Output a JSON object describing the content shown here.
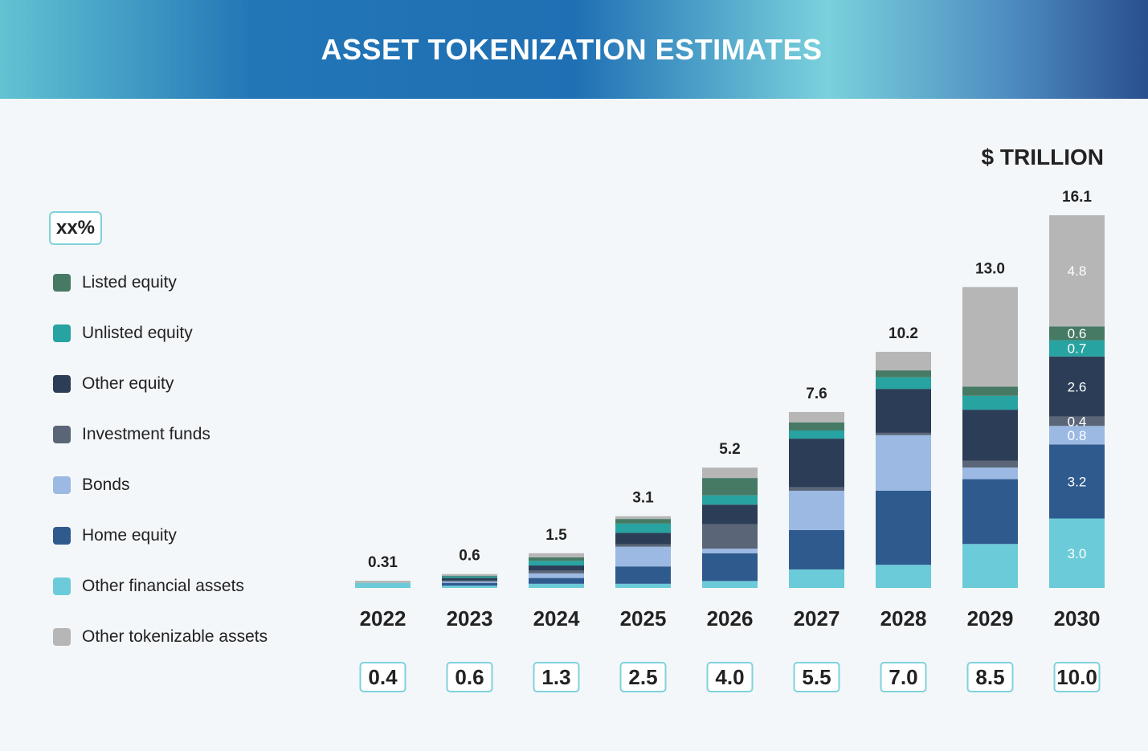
{
  "header": {
    "title": "ASSET TOKENIZATION ESTIMATES"
  },
  "unit_label": "$ TRILLION",
  "percent_box_label": "xx%",
  "colors": {
    "listed_equity": "#467a65",
    "unlisted_equity": "#27a3a1",
    "other_equity": "#2c3e57",
    "investment_funds": "#5a6678",
    "bonds": "#9bb9e2",
    "home_equity": "#2f5a8e",
    "other_financial_assets": "#6ccbd8",
    "other_tokenizable_assets": "#b6b6b6"
  },
  "legend": [
    {
      "key": "listed_equity",
      "label": "Listed equity",
      "color": "#467a65"
    },
    {
      "key": "unlisted_equity",
      "label": "Unlisted equity",
      "color": "#27a3a1"
    },
    {
      "key": "other_equity",
      "label": "Other equity",
      "color": "#2c3e57"
    },
    {
      "key": "investment_funds",
      "label": "Investment funds",
      "color": "#5a6678"
    },
    {
      "key": "bonds",
      "label": "Bonds",
      "color": "#9bb9e2"
    },
    {
      "key": "home_equity",
      "label": "Home equity",
      "color": "#2f5a8e"
    },
    {
      "key": "other_financial_assets",
      "label": "Other financial assets",
      "color": "#6ccbd8"
    },
    {
      "key": "other_tokenizable_assets",
      "label": "Other tokenizable assets",
      "color": "#b6b6b6"
    }
  ],
  "chart_data": {
    "type": "bar",
    "stacked": true,
    "title": "ASSET TOKENIZATION ESTIMATES",
    "ylabel": "$ TRILLION",
    "ylim": [
      0,
      16.1
    ],
    "categories": [
      "2022",
      "2023",
      "2024",
      "2025",
      "2026",
      "2027",
      "2028",
      "2029",
      "2030"
    ],
    "totals": [
      "0.31",
      "0.6",
      "1.5",
      "3.1",
      "5.2",
      "7.6",
      "10.2",
      "13.0",
      "16.1"
    ],
    "total_values": [
      0.31,
      0.6,
      1.5,
      3.1,
      5.2,
      7.6,
      10.2,
      13.0,
      16.1
    ],
    "percent_row": [
      "0.4",
      "0.6",
      "1.3",
      "2.5",
      "4.0",
      "5.5",
      "7.0",
      "8.5",
      "10.0"
    ],
    "series_order_bottom_to_top": [
      "other_financial_assets",
      "home_equity",
      "bonds",
      "investment_funds",
      "other_equity",
      "unlisted_equity",
      "listed_equity",
      "other_tokenizable_assets"
    ],
    "series": [
      {
        "key": "other_financial_assets",
        "name": "Other financial assets",
        "values": [
          0.22,
          0.1,
          0.18,
          0.18,
          0.3,
          0.8,
          1.0,
          1.9,
          3.0
        ]
      },
      {
        "key": "home_equity",
        "name": "Home equity",
        "values": [
          0.0,
          0.12,
          0.25,
          0.75,
          1.2,
          1.7,
          3.2,
          2.8,
          3.2
        ]
      },
      {
        "key": "bonds",
        "name": "Bonds",
        "values": [
          0.0,
          0.06,
          0.2,
          0.85,
          0.2,
          1.7,
          2.4,
          0.5,
          0.8
        ]
      },
      {
        "key": "investment_funds",
        "name": "Investment funds",
        "values": [
          0.0,
          0.05,
          0.12,
          0.1,
          1.05,
          0.15,
          0.1,
          0.3,
          0.4
        ]
      },
      {
        "key": "other_equity",
        "name": "Other equity",
        "values": [
          0.0,
          0.1,
          0.22,
          0.5,
          0.85,
          2.1,
          1.9,
          2.2,
          2.6
        ]
      },
      {
        "key": "unlisted_equity",
        "name": "Unlisted equity",
        "values": [
          0.0,
          0.06,
          0.2,
          0.4,
          0.4,
          0.35,
          0.5,
          0.6,
          0.7
        ]
      },
      {
        "key": "listed_equity",
        "name": "Listed equity",
        "values": [
          0.0,
          0.04,
          0.15,
          0.2,
          0.75,
          0.35,
          0.3,
          0.4,
          0.6
        ]
      },
      {
        "key": "other_tokenizable_assets",
        "name": "Other tokenizable assets",
        "values": [
          0.09,
          0.07,
          0.18,
          0.12,
          0.45,
          0.45,
          0.8,
          4.3,
          4.8
        ]
      }
    ],
    "segment_labels_2030": {
      "other_financial_assets": "3.0",
      "home_equity": "3.2",
      "bonds": "0.8",
      "investment_funds": "0.4",
      "other_equity": "2.6",
      "unlisted_equity": "0.7",
      "listed_equity": "0.6",
      "other_tokenizable_assets": "4.8"
    }
  }
}
